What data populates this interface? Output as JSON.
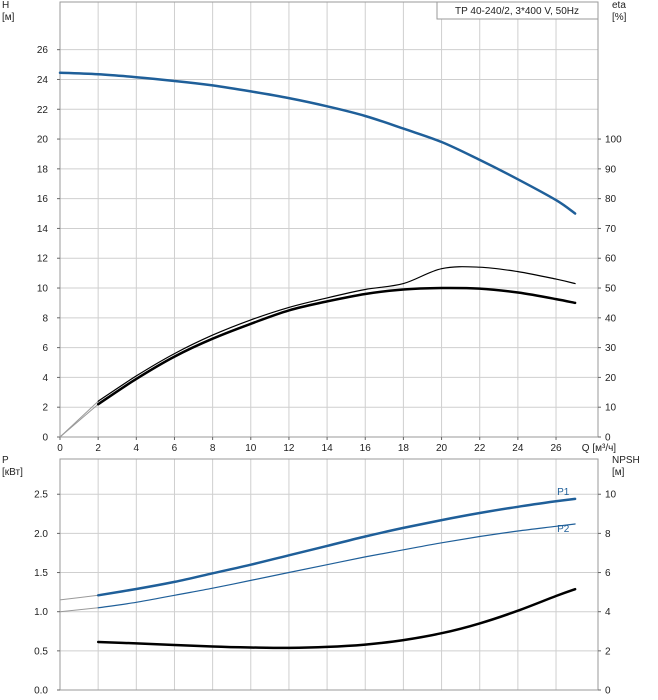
{
  "chart_data": [
    {
      "type": "line",
      "title": "TP 40-240/2, 3*400 V, 50Hz",
      "xlabel": "Q [м³/ч]",
      "y_left_label": [
        "H",
        "[м]"
      ],
      "y_right_label": [
        "eta",
        "[%]"
      ],
      "xlim": [
        0,
        28.2
      ],
      "ylim_left": [
        0,
        29.2
      ],
      "ylim_right": [
        0,
        146
      ],
      "x_ticks": [
        0,
        2,
        4,
        6,
        8,
        10,
        12,
        14,
        16,
        18,
        20,
        22,
        24,
        26
      ],
      "y_left_ticks": [
        0,
        2,
        4,
        6,
        8,
        10,
        12,
        14,
        16,
        18,
        20,
        22,
        24,
        26
      ],
      "y_right_ticks": [
        0,
        10,
        20,
        30,
        40,
        50,
        60,
        70,
        80,
        90,
        100
      ],
      "grid": true,
      "series": [
        {
          "name": "",
          "axis": "left",
          "color": "#1f5f99",
          "width": 2.5,
          "x": [
            0,
            2,
            4,
            6,
            8,
            10,
            12,
            14,
            16,
            18,
            20,
            22,
            24,
            26,
            27
          ],
          "y": [
            24.45,
            24.35,
            24.15,
            23.9,
            23.6,
            23.2,
            22.75,
            22.2,
            21.55,
            20.7,
            19.8,
            18.6,
            17.3,
            15.9,
            15.0
          ],
          "extension": [
            [
              0,
              24.45
            ],
            [
              2,
              24.35
            ]
          ]
        },
        {
          "name": "",
          "axis": "right",
          "color": "#000000",
          "width": 1.2,
          "x": [
            2,
            4,
            6,
            8,
            10,
            12,
            14,
            16,
            18,
            20,
            22,
            24,
            26,
            27
          ],
          "y": [
            12,
            20.5,
            28,
            34.2,
            39.3,
            43.5,
            46.7,
            49.5,
            51.5,
            56.5,
            57.0,
            55.5,
            53,
            51.5
          ],
          "extension": [
            [
              0,
              0
            ],
            [
              2,
              12
            ]
          ]
        },
        {
          "name": "",
          "axis": "right",
          "color": "#000000",
          "width": 2.5,
          "x": [
            2,
            4,
            6,
            8,
            10,
            12,
            14,
            16,
            18,
            20,
            22,
            24,
            26,
            27
          ],
          "y": [
            11,
            19.5,
            27,
            33,
            38,
            42.5,
            45.5,
            48,
            49.5,
            50.0,
            49.8,
            48.5,
            46.3,
            45
          ],
          "extension": [
            [
              0,
              0
            ],
            [
              2,
              11
            ]
          ]
        }
      ]
    },
    {
      "type": "line",
      "title": "",
      "xlabel": "",
      "y_left_label": [
        "P",
        "[кВт]"
      ],
      "y_right_label": [
        "NPSH",
        "[м]"
      ],
      "xlim": [
        0,
        28.2
      ],
      "ylim_left": [
        0,
        2.95
      ],
      "ylim_right": [
        0,
        11.8
      ],
      "y_left_ticks": [
        0.0,
        0.5,
        1.0,
        1.5,
        2.0,
        2.5
      ],
      "y_left_tick_labels": [
        "0.0",
        "0.5",
        "1.0",
        "1.5",
        "2.0",
        "2.5"
      ],
      "y_right_ticks": [
        0,
        2,
        4,
        6,
        8,
        10
      ],
      "grid": true,
      "series": [
        {
          "name": "P1",
          "axis": "left",
          "color": "#1f5f99",
          "width": 2.5,
          "x": [
            2,
            4,
            6,
            8,
            10,
            12,
            14,
            16,
            18,
            20,
            22,
            24,
            26,
            27
          ],
          "y": [
            1.21,
            1.29,
            1.38,
            1.49,
            1.6,
            1.72,
            1.84,
            1.96,
            2.07,
            2.17,
            2.26,
            2.34,
            2.41,
            2.44
          ],
          "extension": [
            [
              0,
              1.15
            ],
            [
              2,
              1.21
            ]
          ]
        },
        {
          "name": "P2",
          "axis": "left",
          "color": "#1f5f99",
          "width": 1.2,
          "x": [
            2,
            4,
            6,
            8,
            10,
            12,
            14,
            16,
            18,
            20,
            22,
            24,
            26,
            27
          ],
          "y": [
            1.05,
            1.12,
            1.21,
            1.3,
            1.4,
            1.5,
            1.6,
            1.7,
            1.79,
            1.88,
            1.96,
            2.03,
            2.09,
            2.12
          ],
          "extension": [
            [
              0,
              1.0
            ],
            [
              2,
              1.05
            ]
          ]
        },
        {
          "name": "",
          "axis": "right",
          "color": "#000000",
          "width": 2.5,
          "x": [
            2,
            4,
            6,
            8,
            10,
            12,
            14,
            16,
            18,
            20,
            22,
            24,
            26,
            27
          ],
          "y": [
            2.45,
            2.38,
            2.3,
            2.22,
            2.17,
            2.15,
            2.2,
            2.32,
            2.55,
            2.9,
            3.4,
            4.05,
            4.8,
            5.15
          ]
        }
      ]
    }
  ]
}
